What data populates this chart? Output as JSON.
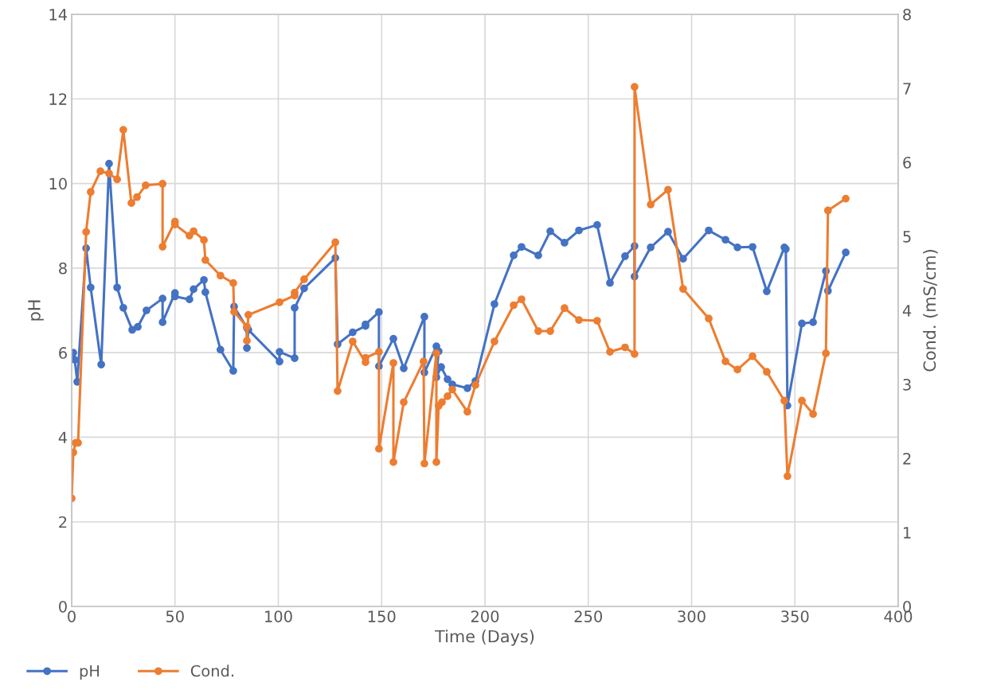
{
  "chart_data": {
    "type": "line",
    "xlabel": "Time (Days)",
    "ylabel": "pH",
    "y2label": "Cond. (mS/cm)",
    "xlim": [
      0,
      400
    ],
    "xticks": [
      0,
      50,
      100,
      150,
      200,
      250,
      300,
      350,
      400
    ],
    "ylim": [
      0,
      14
    ],
    "yticks": [
      0,
      2,
      4,
      6,
      8,
      10,
      12,
      14
    ],
    "y2lim": [
      0,
      8
    ],
    "y2ticks": [
      0,
      1,
      2,
      3,
      4,
      5,
      6,
      7,
      8
    ],
    "grid": true,
    "legend": "bottom left",
    "marker": "circle",
    "line_style": "solid",
    "series": [
      {
        "name": "pH",
        "color": "#4472c4",
        "axis": "y",
        "x": [
          0,
          0.8,
          1.5,
          2.7,
          7,
          9.2,
          14.3,
          18.1,
          22,
          25,
          29.3,
          32,
          36.2,
          44,
          44,
          50,
          50,
          57,
          59,
          64,
          64.7,
          72,
          78.2,
          78.6,
          84.8,
          84.8,
          85.5,
          100.6,
          100.6,
          107.9,
          107.9,
          112.5,
          127.6,
          128.7,
          136,
          142.2,
          142.2,
          148.7,
          148.7,
          155.7,
          160.7,
          170.7,
          170.7,
          176.5,
          177.6,
          176.5,
          178.8,
          181.9,
          184.2,
          191.5,
          195.4,
          204.6,
          213.9,
          217.7,
          225.8,
          231.6,
          238.5,
          245.5,
          254.3,
          260.5,
          267.8,
          272.4,
          272.4,
          280.2,
          288.6,
          295.9,
          308.3,
          316.4,
          322.2,
          329.5,
          336.4,
          344.9,
          345.6,
          346.4,
          353.4,
          358.8,
          365,
          366,
          374.6
        ],
        "values": [
          5.89,
          6.0,
          5.83,
          5.31,
          8.47,
          7.54,
          5.72,
          10.47,
          7.54,
          7.06,
          6.54,
          6.61,
          7.0,
          7.28,
          6.72,
          7.41,
          7.33,
          7.26,
          7.5,
          7.72,
          7.43,
          6.07,
          5.57,
          7.09,
          6.59,
          6.11,
          6.54,
          5.79,
          6.02,
          5.87,
          7.06,
          7.52,
          8.24,
          6.2,
          6.48,
          6.63,
          6.67,
          6.96,
          5.68,
          6.33,
          5.63,
          6.85,
          5.53,
          6.15,
          6.03,
          5.42,
          5.66,
          5.37,
          5.25,
          5.16,
          5.33,
          7.15,
          8.3,
          8.5,
          8.3,
          8.87,
          8.6,
          8.89,
          9.02,
          7.65,
          8.28,
          8.52,
          7.8,
          8.49,
          8.86,
          8.22,
          8.89,
          8.67,
          8.49,
          8.5,
          7.45,
          8.49,
          8.45,
          4.75,
          6.69,
          6.72,
          7.93,
          7.46,
          8.37
        ]
      },
      {
        "name": "Cond.",
        "color": "#ed7d31",
        "axis": "y2",
        "x": [
          0,
          0.8,
          1.9,
          3.1,
          7,
          9.2,
          13.9,
          18.1,
          22,
          25,
          28.9,
          31.6,
          35.8,
          44,
          44,
          50,
          50,
          57,
          59,
          64,
          64.7,
          72,
          78.2,
          78.6,
          84.8,
          84.8,
          85.5,
          100.6,
          107.9,
          107.9,
          112.5,
          127.6,
          128.7,
          136,
          142.2,
          142.2,
          148.7,
          148.7,
          155.7,
          155.7,
          160.7,
          170.3,
          170.7,
          176.5,
          176.5,
          177.6,
          179.2,
          181.9,
          184.2,
          191.5,
          195.4,
          204.6,
          213.9,
          217.7,
          225.8,
          231.6,
          238.5,
          245.5,
          254.3,
          260.5,
          267.8,
          272.4,
          272.4,
          280.2,
          288.6,
          295.9,
          308.3,
          316.4,
          322.2,
          329.5,
          336.4,
          344.9,
          346.4,
          353.4,
          358.8,
          365,
          366,
          374.6
        ],
        "values": [
          1.46,
          2.08,
          2.21,
          2.21,
          5.06,
          5.6,
          5.88,
          5.85,
          5.77,
          6.44,
          5.45,
          5.53,
          5.69,
          5.71,
          4.86,
          5.2,
          5.16,
          5.01,
          5.07,
          4.95,
          4.68,
          4.47,
          4.37,
          3.98,
          3.78,
          3.59,
          3.94,
          4.11,
          4.2,
          4.24,
          4.42,
          4.92,
          2.91,
          3.58,
          3.3,
          3.36,
          3.44,
          2.13,
          3.29,
          1.95,
          2.76,
          3.31,
          1.93,
          3.42,
          1.95,
          2.71,
          2.76,
          2.84,
          2.93,
          2.63,
          2.99,
          3.58,
          4.07,
          4.15,
          3.72,
          3.72,
          4.03,
          3.87,
          3.86,
          3.44,
          3.5,
          3.41,
          7.02,
          5.43,
          5.63,
          4.29,
          3.89,
          3.31,
          3.2,
          3.38,
          3.17,
          2.78,
          1.76,
          2.78,
          2.6,
          3.42,
          5.35,
          5.51
        ]
      }
    ]
  }
}
